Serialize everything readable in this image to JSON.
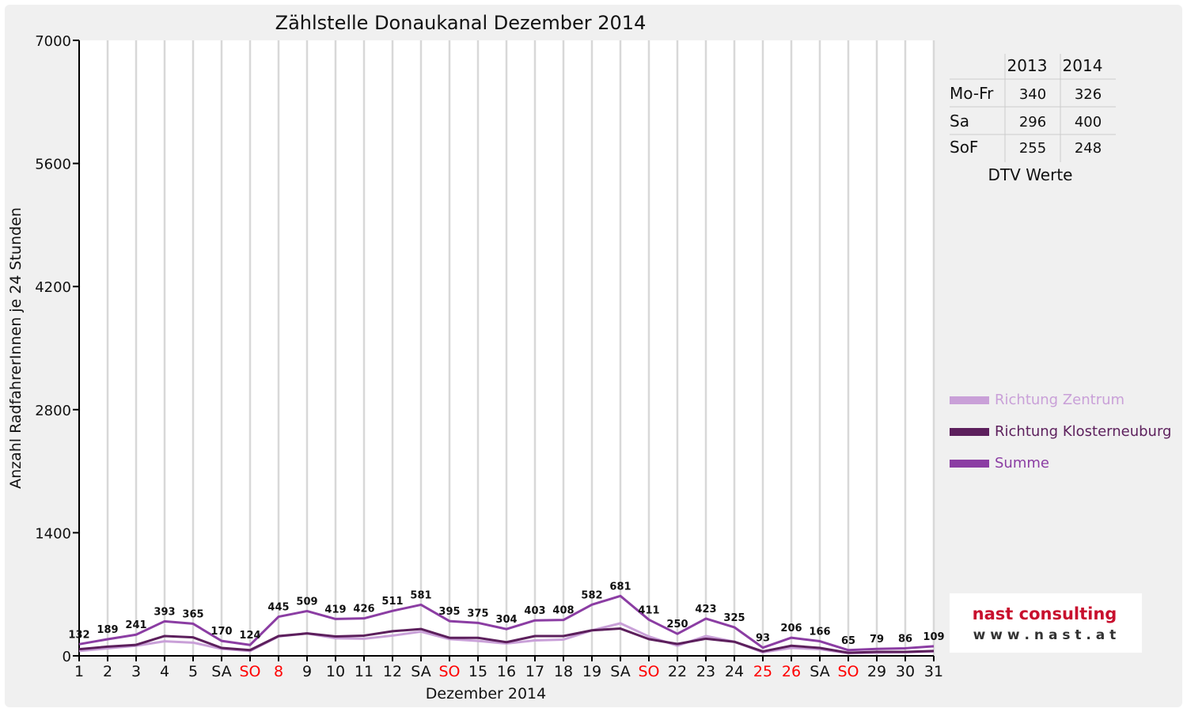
{
  "chart_data": {
    "type": "line",
    "title": "Zählstelle Donaukanal Dezember 2014",
    "xlabel": "Dezember 2014",
    "ylabel": "Anzahl RadfahrerInnen je 24 Stunden",
    "ylim": [
      0,
      7000
    ],
    "yticks": [
      "0",
      "1400",
      "2800",
      "4200",
      "5600",
      "7000"
    ],
    "grid": true,
    "legend_position": "right",
    "categories": [
      "1",
      "2",
      "3",
      "4",
      "5",
      "SA",
      "SO",
      "8",
      "9",
      "10",
      "11",
      "12",
      "SA",
      "SO",
      "15",
      "16",
      "17",
      "18",
      "19",
      "SA",
      "SO",
      "22",
      "23",
      "24",
      "25",
      "26",
      "SA",
      "SO",
      "29",
      "30",
      "31"
    ],
    "highlight_categories": [
      6,
      7,
      13,
      20,
      24,
      25,
      27
    ],
    "highlight_color": "#ff0000",
    "series": [
      {
        "name": "Richtung Zentrum",
        "color": "#c9a0d8",
        "values": [
          55,
          85,
          115,
          165,
          150,
          80,
          55,
          220,
          255,
          200,
          195,
          230,
          275,
          190,
          170,
          140,
          175,
          185,
          290,
          370,
          220,
          115,
          225,
          160,
          40,
          90,
          75,
          30,
          35,
          40,
          50
        ]
      },
      {
        "name": "Richtung Klosterneuburg",
        "color": "#5c1f5c",
        "values": [
          75,
          105,
          125,
          225,
          210,
          90,
          65,
          225,
          255,
          220,
          230,
          280,
          305,
          205,
          205,
          155,
          225,
          225,
          290,
          310,
          190,
          135,
          195,
          160,
          50,
          115,
          90,
          35,
          45,
          45,
          55
        ]
      },
      {
        "name": "Summe",
        "color": "#8b3da3",
        "values": [
          132,
          189,
          241,
          393,
          365,
          170,
          124,
          445,
          509,
          419,
          426,
          511,
          581,
          395,
          375,
          304,
          403,
          408,
          582,
          681,
          411,
          250,
          423,
          325,
          93,
          206,
          166,
          65,
          79,
          86,
          109
        ],
        "labels": [
          "132",
          "189",
          "241",
          "393",
          "365",
          "170",
          "124",
          "445",
          "509",
          "419",
          "426",
          "511",
          "581",
          "395",
          "375",
          "304",
          "403",
          "408",
          "582",
          "681",
          "411",
          "250",
          "423",
          "325",
          "93",
          "206",
          "166",
          "65",
          "79",
          "86",
          "109"
        ]
      }
    ]
  },
  "dtv_table": {
    "caption": "DTV Werte",
    "headers": [
      "",
      "2013",
      "2014"
    ],
    "rows": [
      [
        "Mo-Fr",
        "340",
        "326"
      ],
      [
        "Sa",
        "296",
        "400"
      ],
      [
        "SoF",
        "255",
        "248"
      ]
    ]
  },
  "logo": {
    "line1": "nast consulting",
    "line2": "w w w . n a s t . a t",
    "color1": "#c8102e",
    "color2": "#333333"
  }
}
